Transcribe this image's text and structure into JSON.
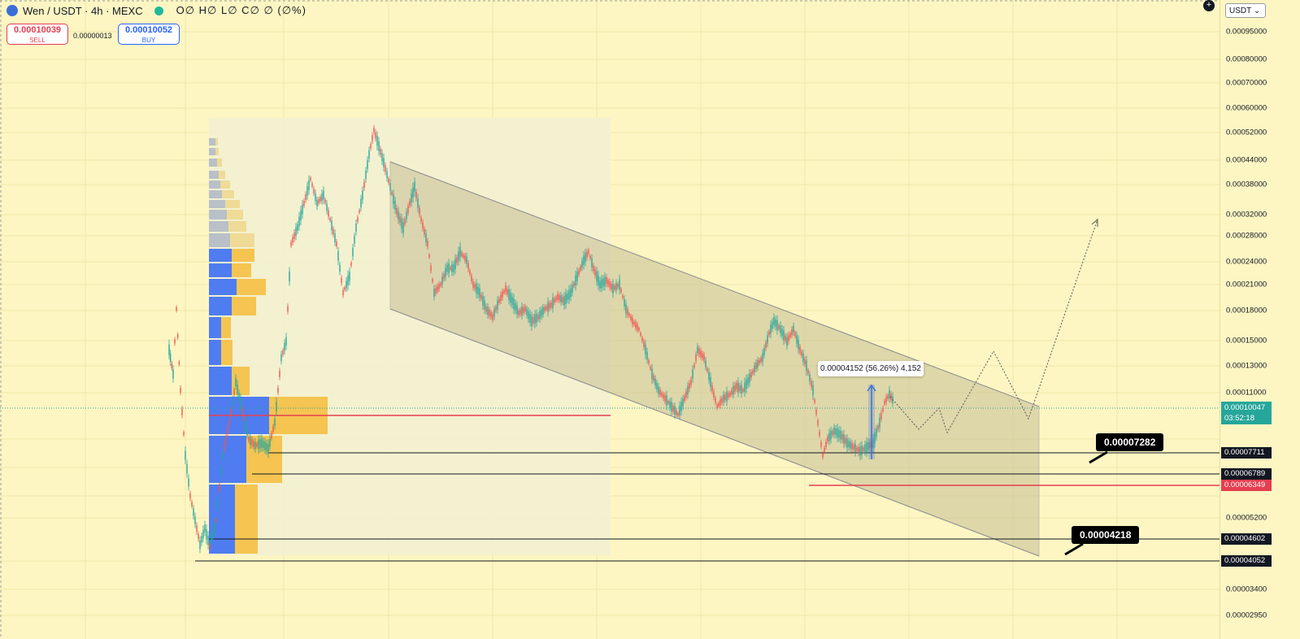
{
  "header": {
    "symbol": "Wen / USDT · 4h · MEXC",
    "ohlc": "O∅ H∅ L∅ C∅ ∅ (∅%)",
    "symbol_icon": "coin-icon",
    "status_icon": "market-open-dot-icon"
  },
  "trade": {
    "sell_price": "0.00010039",
    "sell_label": "SELL",
    "spread": "0.00000013",
    "buy_price": "0.00010052",
    "buy_label": "BUY"
  },
  "scale": {
    "currency": "USDT",
    "ticks": [
      "0.00095000",
      "0.00080000",
      "0.00070000",
      "0.00060000",
      "0.00052000",
      "0.00044000",
      "0.00038000",
      "0.00032000",
      "0.00028000",
      "0.00024000",
      "0.00021000",
      "0.00018000",
      "0.00015000",
      "0.00013000",
      "0.00011000",
      "0.00005200",
      "0.00003400",
      "0.00002950"
    ],
    "current_price": "0.00010047",
    "countdown": "03:52:18",
    "levels": [
      "0.00007711",
      "0.00006789",
      "0.00006349",
      "0.00004602",
      "0.00004052"
    ]
  },
  "annotations": {
    "callout_upper": "0.00007282",
    "callout_lower": "0.00004218",
    "measure_label": "0.00004152 (56.26%) 4,152"
  },
  "colors": {
    "background": "#fdf6c3",
    "up": "#26a69a",
    "down": "#ef5350",
    "volume_profile_up": "#4f7cf0",
    "volume_profile_down": "#f5c451",
    "channel_fill": "#cfc8a0",
    "poc_line": "#e53e4f"
  }
}
